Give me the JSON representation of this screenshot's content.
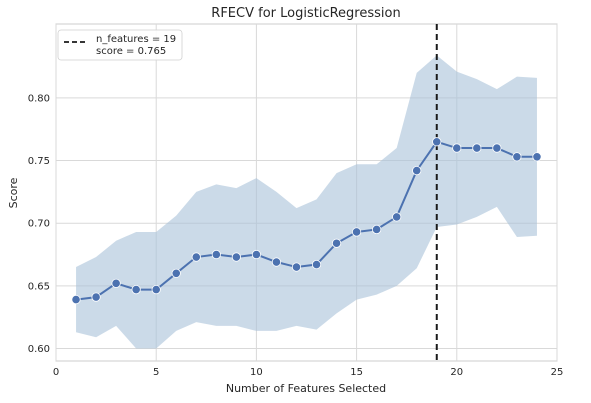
{
  "chart_data": {
    "type": "line",
    "title": "RFECV for LogisticRegression",
    "xlabel": "Number of Features Selected",
    "ylabel": "Score",
    "xlim": [
      0,
      25
    ],
    "ylim": [
      0.59,
      0.859
    ],
    "xticks": [
      0,
      5,
      10,
      15,
      20,
      25
    ],
    "yticks": [
      0.6,
      0.65,
      0.7,
      0.75,
      0.8
    ],
    "xtick_labels": [
      "0",
      "5",
      "10",
      "15",
      "20",
      "25"
    ],
    "ytick_labels": [
      "0.60",
      "0.65",
      "0.70",
      "0.75",
      "0.80"
    ],
    "grid": true,
    "legend_position": "top-left",
    "x": [
      1,
      2,
      3,
      4,
      5,
      6,
      7,
      8,
      9,
      10,
      11,
      12,
      13,
      14,
      15,
      16,
      17,
      18,
      19,
      20,
      21,
      22,
      23,
      24
    ],
    "series": [
      {
        "values": [
          0.639,
          0.641,
          0.652,
          0.647,
          0.647,
          0.66,
          0.673,
          0.675,
          0.673,
          0.675,
          0.669,
          0.665,
          0.667,
          0.684,
          0.693,
          0.695,
          0.705,
          0.742,
          0.765,
          0.76,
          0.76,
          0.76,
          0.753,
          0.753
        ],
        "color": "#4c72b0"
      }
    ],
    "band": {
      "upper": [
        0.665,
        0.673,
        0.686,
        0.693,
        0.693,
        0.706,
        0.725,
        0.731,
        0.728,
        0.736,
        0.725,
        0.712,
        0.719,
        0.74,
        0.747,
        0.747,
        0.76,
        0.82,
        0.834,
        0.821,
        0.815,
        0.807,
        0.817,
        0.816
      ],
      "lower": [
        0.613,
        0.609,
        0.618,
        0.6,
        0.6,
        0.614,
        0.621,
        0.618,
        0.618,
        0.614,
        0.614,
        0.618,
        0.615,
        0.628,
        0.639,
        0.643,
        0.65,
        0.664,
        0.697,
        0.699,
        0.705,
        0.713,
        0.689,
        0.69
      ],
      "color": "#a8c1d8"
    },
    "marker_line": {
      "x": 19,
      "style": "dashed",
      "color": "#1a1a1a"
    },
    "legend": {
      "lines": [
        "n_features = 19",
        "score = 0.765"
      ]
    }
  }
}
